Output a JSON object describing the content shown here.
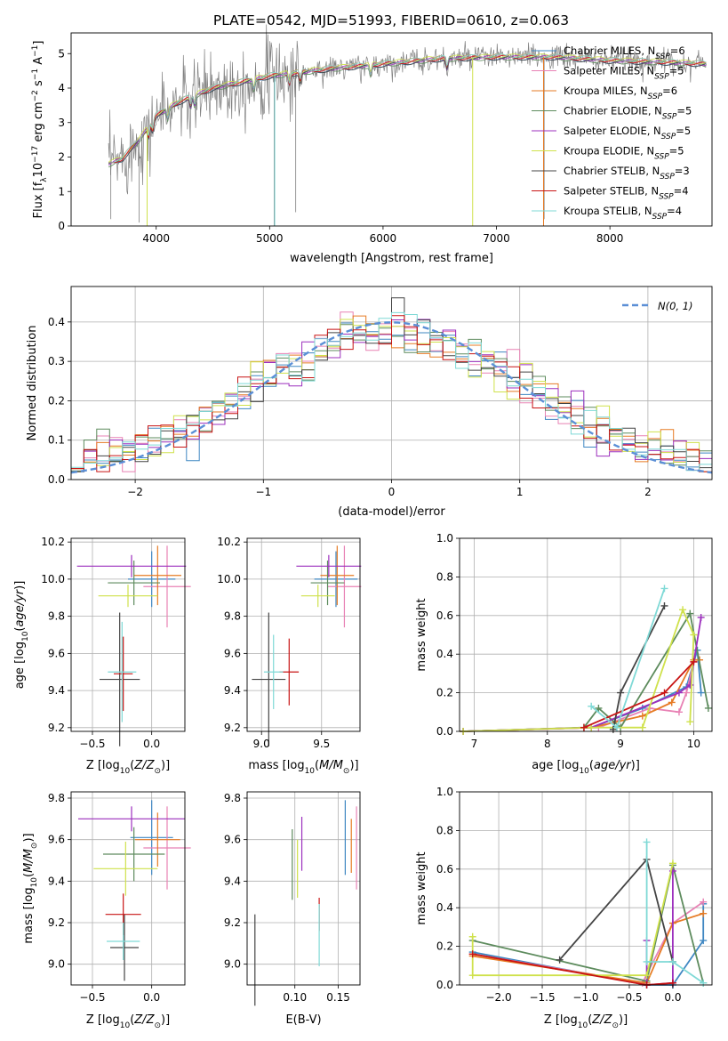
{
  "title": "PLATE=0542, MJD=51993, FIBERID=0610, z=0.063",
  "chart_data": [
    {
      "id": "spectrum",
      "type": "line",
      "xlabel": "wavelength [Angstrom, rest frame]",
      "ylabel": "Flux [f_λ 10^-17 erg cm^-2 s^-1 A^-1]",
      "xlim": [
        3250,
        8900
      ],
      "ylim": [
        0,
        5.6
      ],
      "xticks": [
        4000,
        5000,
        6000,
        7000,
        8000
      ],
      "yticks": [
        0,
        1,
        2,
        3,
        4,
        5
      ],
      "legend_position": "upper right",
      "continuum": [
        [
          3580,
          1.8
        ],
        [
          3700,
          1.95
        ],
        [
          3850,
          2.5
        ],
        [
          4000,
          3.2
        ],
        [
          4200,
          3.6
        ],
        [
          4500,
          4.0
        ],
        [
          5000,
          4.35
        ],
        [
          5500,
          4.55
        ],
        [
          6000,
          4.7
        ],
        [
          6500,
          4.85
        ],
        [
          7000,
          4.9
        ],
        [
          7500,
          4.9
        ],
        [
          8000,
          4.8
        ],
        [
          8500,
          4.75
        ],
        [
          8850,
          4.7
        ]
      ],
      "series": [
        {
          "name": "Chabrier MILES, N_SSP=6",
          "color": "#3f87c2"
        },
        {
          "name": "Salpeter MILES, N_SSP=5",
          "color": "#e881b4"
        },
        {
          "name": "Kroupa MILES, N_SSP=6",
          "color": "#e67b24"
        },
        {
          "name": "Chabrier ELODIE, N_SSP=5",
          "color": "#5d8b5d"
        },
        {
          "name": "Salpeter ELODIE, N_SSP=5",
          "color": "#9c2fbd"
        },
        {
          "name": "Kroupa ELODIE, N_SSP=5",
          "color": "#cfe14b"
        },
        {
          "name": "Chabrier STELIB, N_SSP=3",
          "color": "#444444"
        },
        {
          "name": "Salpeter STELIB, N_SSP=4",
          "color": "#c81414"
        },
        {
          "name": "Kroupa STELIB, N_SSP=4",
          "color": "#7fd9d6"
        }
      ]
    },
    {
      "id": "residuals",
      "type": "line",
      "xlabel": "(data-model)/error",
      "ylabel": "Normed distribution",
      "xlim": [
        -2.5,
        2.5
      ],
      "ylim": [
        0,
        0.49
      ],
      "xticks": [
        -2,
        -1,
        0,
        1,
        2
      ],
      "xticklabels": [
        "−2",
        "−1",
        "0",
        "1",
        "2"
      ],
      "yticks": [
        0.0,
        0.1,
        0.2,
        0.3,
        0.4
      ],
      "yticklabels": [
        "0.0",
        "0.1",
        "0.2",
        "0.3",
        "0.4"
      ],
      "gaussian_label": "N(0, 1)",
      "gaussian_color": "#5b8fd6"
    },
    {
      "id": "age-vs-Z",
      "type": "errorbar",
      "xlabel": "Z [log10(Z/Z⊙)]",
      "ylabel": "age [log10(age/yr)]",
      "xlim": [
        -0.68,
        0.28
      ],
      "ylim": [
        9.18,
        10.22
      ],
      "xticks": [
        -0.5,
        0.0
      ],
      "xticklabels": [
        "−0.5",
        "0.0"
      ],
      "yticks": [
        9.2,
        9.4,
        9.6,
        9.8,
        10.0,
        10.2
      ],
      "yticklabels": [
        "9.2",
        "9.4",
        "9.6",
        "9.8",
        "10.0",
        "10.2"
      ],
      "points": [
        {
          "x": 0.0,
          "y": 10.0,
          "xerr": 0.2,
          "yerr": 0.15
        },
        {
          "x": 0.13,
          "y": 9.96,
          "xerr": 0.2,
          "yerr": 0.22
        },
        {
          "x": 0.05,
          "y": 10.02,
          "xerr": 0.2,
          "yerr": 0.16
        },
        {
          "x": -0.15,
          "y": 9.98,
          "xerr": 0.22,
          "yerr": 0.12
        },
        {
          "x": -0.17,
          "y": 10.07,
          "xerr": 0.46,
          "yerr": 0.06
        },
        {
          "x": -0.2,
          "y": 9.91,
          "xerr": 0.25,
          "yerr": 0.06
        },
        {
          "x": -0.27,
          "y": 9.46,
          "xerr": 0.17,
          "yerr": 0.36
        },
        {
          "x": -0.24,
          "y": 9.49,
          "xerr": 0.08,
          "yerr": 0.2
        },
        {
          "x": -0.25,
          "y": 9.5,
          "xerr": 0.12,
          "yerr": 0.27
        }
      ]
    },
    {
      "id": "age-vs-mass",
      "type": "errorbar",
      "xlabel": "mass [log10(M/M⊙)]",
      "ylabel": "",
      "xlim": [
        8.88,
        9.82
      ],
      "ylim": [
        9.18,
        10.22
      ],
      "xticks": [
        9.0,
        9.5
      ],
      "xticklabels": [
        "9.0",
        "9.5"
      ],
      "yticks": [
        9.2,
        9.4,
        9.6,
        9.8,
        10.0,
        10.2
      ],
      "yticklabels": [
        "9.2",
        "9.4",
        "9.6",
        "9.8",
        "10.0",
        "10.2"
      ],
      "points": [
        {
          "x": 9.62,
          "y": 10.0,
          "xerr": 0.18,
          "yerr": 0.15
        },
        {
          "x": 9.69,
          "y": 9.96,
          "xerr": 0.14,
          "yerr": 0.22
        },
        {
          "x": 9.63,
          "y": 10.02,
          "xerr": 0.14,
          "yerr": 0.16
        },
        {
          "x": 9.55,
          "y": 9.98,
          "xerr": 0.14,
          "yerr": 0.12
        },
        {
          "x": 9.56,
          "y": 10.07,
          "xerr": 0.27,
          "yerr": 0.06
        },
        {
          "x": 9.47,
          "y": 9.91,
          "xerr": 0.14,
          "yerr": 0.06
        },
        {
          "x": 9.06,
          "y": 9.46,
          "xerr": 0.14,
          "yerr": 0.36
        },
        {
          "x": 9.23,
          "y": 9.5,
          "xerr": 0.08,
          "yerr": 0.18
        },
        {
          "x": 9.1,
          "y": 9.5,
          "xerr": 0.08,
          "yerr": 0.2
        }
      ]
    },
    {
      "id": "weight-vs-age",
      "type": "line",
      "xlabel": "age [log10(age/yr)]",
      "ylabel": "mass weight",
      "xlim": [
        6.8,
        10.25
      ],
      "ylim": [
        0,
        1.0
      ],
      "xticks": [
        7,
        8,
        9,
        10
      ],
      "xticklabels": [
        "7",
        "8",
        "9",
        "10"
      ],
      "yticks": [
        0.0,
        0.2,
        0.4,
        0.6,
        0.8,
        1.0
      ],
      "yticklabels": [
        "0.0",
        "0.2",
        "0.4",
        "0.6",
        "0.8",
        "1.0"
      ]
    },
    {
      "id": "mass-vs-Z",
      "type": "errorbar",
      "xlabel": "Z [log10(Z/Z⊙)]",
      "ylabel": "mass [log10(M/M⊙)]",
      "xlim": [
        -0.68,
        0.28
      ],
      "ylim": [
        8.9,
        9.83
      ],
      "xticks": [
        -0.5,
        0.0
      ],
      "xticklabels": [
        "−0.5",
        "0.0"
      ],
      "yticks": [
        9.0,
        9.2,
        9.4,
        9.6,
        9.8
      ],
      "yticklabels": [
        "9.0",
        "9.2",
        "9.4",
        "9.6",
        "9.8"
      ],
      "points": [
        {
          "x": 0.0,
          "y": 9.61,
          "xerr": 0.18,
          "yerr": 0.18
        },
        {
          "x": 0.13,
          "y": 9.56,
          "xerr": 0.2,
          "yerr": 0.2
        },
        {
          "x": 0.05,
          "y": 9.6,
          "xerr": 0.19,
          "yerr": 0.13
        },
        {
          "x": -0.15,
          "y": 9.53,
          "xerr": 0.26,
          "yerr": 0.13
        },
        {
          "x": -0.17,
          "y": 9.7,
          "xerr": 0.45,
          "yerr": 0.06
        },
        {
          "x": -0.22,
          "y": 9.46,
          "xerr": 0.27,
          "yerr": 0.13
        },
        {
          "x": -0.23,
          "y": 9.08,
          "xerr": 0.12,
          "yerr": 0.16
        },
        {
          "x": -0.24,
          "y": 9.24,
          "xerr": 0.15,
          "yerr": 0.1
        },
        {
          "x": -0.24,
          "y": 9.11,
          "xerr": 0.14,
          "yerr": 0.09
        }
      ]
    },
    {
      "id": "mass-vs-EBV",
      "type": "errorbar",
      "xlabel": "E(B-V)",
      "ylabel": "",
      "xlim": [
        0.045,
        0.175
      ],
      "ylim": [
        8.9,
        9.83
      ],
      "xticks": [
        0.1,
        0.15
      ],
      "xticklabels": [
        "0.10",
        "0.15"
      ],
      "yticks": [
        9.0,
        9.2,
        9.4,
        9.6,
        9.8
      ],
      "yticklabels": [
        "9.0",
        "9.2",
        "9.4",
        "9.6",
        "9.8"
      ],
      "points": [
        {
          "x": 0.158,
          "y": 9.61,
          "yerr": 0.18
        },
        {
          "x": 0.171,
          "y": 9.56,
          "yerr": 0.2
        },
        {
          "x": 0.165,
          "y": 9.57,
          "yerr": 0.13
        },
        {
          "x": 0.097,
          "y": 9.48,
          "yerr": 0.17
        },
        {
          "x": 0.108,
          "y": 9.58,
          "yerr": 0.13
        },
        {
          "x": 0.103,
          "y": 9.46,
          "yerr": 0.14
        },
        {
          "x": 0.054,
          "y": 9.02,
          "yerr": 0.22
        },
        {
          "x": 0.128,
          "y": 9.24,
          "yerr": 0.08
        },
        {
          "x": 0.128,
          "y": 9.14,
          "yerr": 0.15
        }
      ]
    },
    {
      "id": "weight-vs-Z",
      "type": "line",
      "xlabel": "Z [log10(Z/Z⊙)]",
      "ylabel": "mass weight",
      "xlim": [
        -2.45,
        0.45
      ],
      "ylim": [
        0,
        1.0
      ],
      "xticks": [
        -2.0,
        -1.5,
        -1.0,
        -0.5,
        0.0
      ],
      "xticklabels": [
        "−2.0",
        "−1.5",
        "−1.0",
        "−0.5",
        "0.0"
      ],
      "yticks": [
        0.0,
        0.2,
        0.4,
        0.6,
        0.8,
        1.0
      ],
      "yticklabels": [
        "0.0",
        "0.2",
        "0.4",
        "0.6",
        "0.8",
        "1.0"
      ]
    }
  ]
}
